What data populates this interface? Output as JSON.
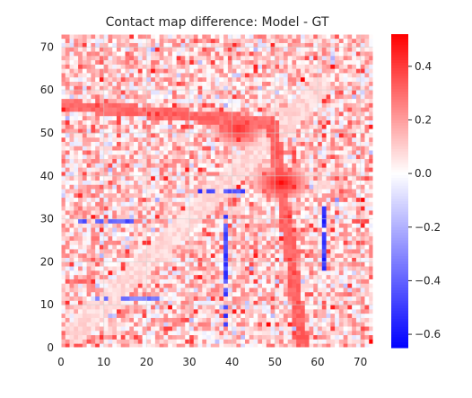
{
  "chart_data": {
    "type": "heatmap",
    "title": "Contact map difference: Model - GT",
    "xlabel": "",
    "ylabel": "",
    "xlim": [
      0,
      73
    ],
    "ylim": [
      0,
      73
    ],
    "n_cells": 73,
    "x_ticks": [
      0,
      10,
      20,
      30,
      40,
      50,
      60,
      70
    ],
    "y_ticks": [
      0,
      10,
      20,
      30,
      40,
      50,
      60,
      70
    ],
    "x_tick_labels": [
      "0",
      "10",
      "20",
      "30",
      "40",
      "50",
      "60",
      "70"
    ],
    "y_tick_labels": [
      "0",
      "10",
      "20",
      "30",
      "40",
      "50",
      "60",
      "70"
    ],
    "grid": true,
    "colormap": "bwr",
    "colorbar": {
      "vmin": -0.65,
      "vmax": 0.52,
      "ticks": [
        0.4,
        0.2,
        0.0,
        -0.2,
        -0.4,
        -0.6
      ],
      "tick_labels": [
        "0.4",
        "0.2",
        "0.0",
        "−0.2",
        "−0.4",
        "−0.6"
      ],
      "colors": {
        "negative": "#0000ff",
        "zero": "#ffffff",
        "positive": "#ff0000"
      }
    },
    "features": {
      "background_level": 0.1,
      "diagonal_band": {
        "from": [
          3,
          3
        ],
        "to": [
          60,
          60
        ],
        "value": 0.08
      },
      "hotspots": [
        {
          "x": 41,
          "y": 50.5,
          "value": 0.45,
          "label": "upper ridge"
        },
        {
          "x": 51,
          "y": 38,
          "value": 0.5,
          "label": "central ridge"
        }
      ],
      "fan_ridges": {
        "origin": [
          49,
          52
        ],
        "lower_ridge_to": [
          56,
          0
        ],
        "upper_ridge_to": [
          0,
          56
        ]
      },
      "blue_streaks": [
        {
          "x": [
            30,
            42
          ],
          "y": 36,
          "value": -0.55
        },
        {
          "x": [
            4,
            16
          ],
          "y": 29,
          "value": -0.5
        },
        {
          "x": 38,
          "y": [
            5,
            30
          ],
          "value": -0.55
        },
        {
          "x": 61,
          "y": [
            18,
            32
          ],
          "value": -0.6
        },
        {
          "x": [
            8,
            22
          ],
          "y": 11,
          "value": -0.4
        }
      ]
    }
  }
}
